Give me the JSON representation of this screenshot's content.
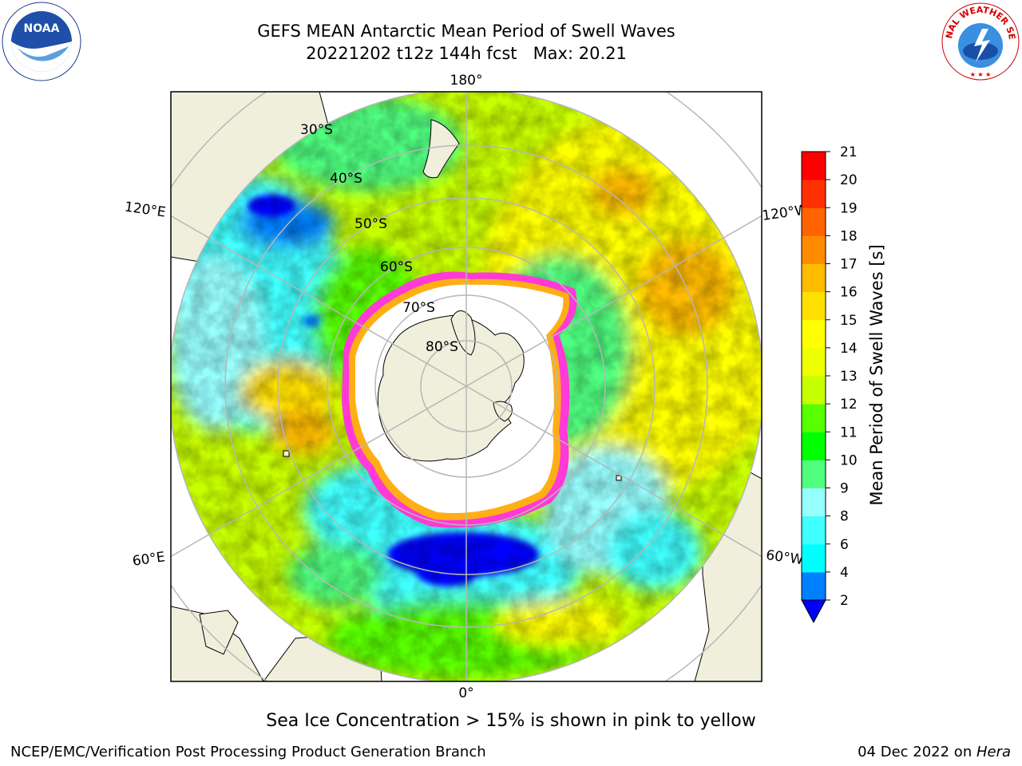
{
  "title": {
    "line1": "GEFS MEAN Antarctic Mean Period of Swell Waves",
    "line2": "20221202 t12z 144h fcst   Max: 20.21"
  },
  "logos": {
    "left": {
      "icon": "noaa-logo",
      "text": "NOAA"
    },
    "right": {
      "icon": "nws-logo",
      "text": "NATIONAL WEATHER SERVICE"
    }
  },
  "map": {
    "projection": "south-polar-stereographic",
    "longitude_labels": [
      "180°",
      "120°E",
      "120°W",
      "60°E",
      "60°W",
      "0°"
    ],
    "latitude_labels": [
      "30°S",
      "40°S",
      "50°S",
      "60°S",
      "70°S",
      "80°S"
    ],
    "colors": {
      "land": "#efefdc",
      "sea_ice": "#ffffff",
      "ice_edge": "#ff3ad6",
      "grid": "#b7b7b7"
    }
  },
  "colorbar": {
    "label": "Mean Period of Swell Waves [s]",
    "ticks": [
      "2",
      "4",
      "6",
      "8",
      "9",
      "10",
      "11",
      "12",
      "13",
      "14",
      "15",
      "16",
      "17",
      "18",
      "19",
      "20",
      "21"
    ],
    "colors": [
      "#0000ff",
      "#0080ff",
      "#00ffff",
      "#40ffff",
      "#98ffff",
      "#50ff80",
      "#00ff00",
      "#58ff00",
      "#c8ff00",
      "#eeff00",
      "#ffff00",
      "#ffe000",
      "#ffbb00",
      "#ff8c00",
      "#ff6400",
      "#ff3000",
      "#ff0000"
    ]
  },
  "caption": "Sea Ice Concentration > 15% is shown in pink to yellow",
  "footer": {
    "left": "NCEP/EMC/Verification Post Processing Product Generation Branch",
    "right_date": "04 Dec 2022 on ",
    "right_host": "Hera"
  }
}
